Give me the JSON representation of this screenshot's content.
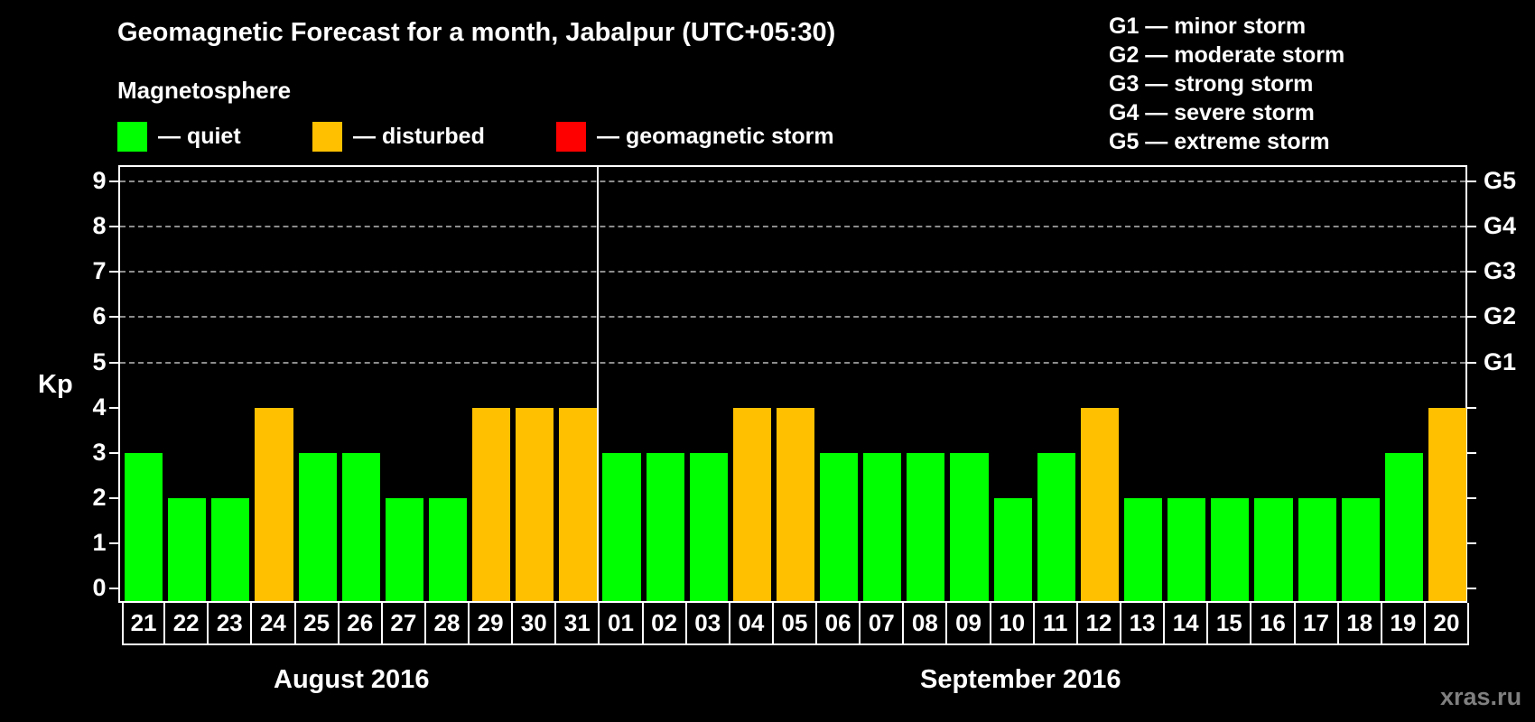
{
  "header": {
    "title": "Geomagnetic Forecast for a month, Jabalpur (UTC+05:30)",
    "magnetosphere_label": "Magnetosphere"
  },
  "legend": [
    {
      "label": "— quiet",
      "color": "#00ff00"
    },
    {
      "label": "— disturbed",
      "color": "#ffc000"
    },
    {
      "label": "— geomagnetic storm",
      "color": "#ff0000"
    }
  ],
  "storm_scale": [
    "G1 — minor storm",
    "G2 — moderate storm",
    "G3 — strong storm",
    "G4 — severe storm",
    "G5 — extreme storm"
  ],
  "axes": {
    "y_label": "Kp",
    "y_ticks": [
      "0",
      "1",
      "2",
      "3",
      "4",
      "5",
      "6",
      "7",
      "8",
      "9"
    ],
    "g_ticks": [
      {
        "kp": 5,
        "label": "G1"
      },
      {
        "kp": 6,
        "label": "G2"
      },
      {
        "kp": 7,
        "label": "G3"
      },
      {
        "kp": 8,
        "label": "G4"
      },
      {
        "kp": 9,
        "label": "G5"
      }
    ]
  },
  "months": [
    "August 2016",
    "September 2016"
  ],
  "watermark": "xras.ru",
  "colors": {
    "quiet": "#00ff00",
    "disturbed": "#ffc000",
    "storm": "#ff0000",
    "grid": "#8c8c8c"
  },
  "chart_data": {
    "type": "bar",
    "title": "Geomagnetic Forecast for a month, Jabalpur (UTC+05:30)",
    "xlabel": "",
    "ylabel": "Kp",
    "ylim": [
      0,
      9
    ],
    "grid": true,
    "legend_position": "top-left",
    "secondary_y_labels": {
      "5": "G1",
      "6": "G2",
      "7": "G3",
      "8": "G4",
      "9": "G5"
    },
    "month_labels": [
      "August 2016",
      "September 2016"
    ],
    "categories": [
      "21",
      "22",
      "23",
      "24",
      "25",
      "26",
      "27",
      "28",
      "29",
      "30",
      "31",
      "01",
      "02",
      "03",
      "04",
      "05",
      "06",
      "07",
      "08",
      "09",
      "10",
      "11",
      "12",
      "13",
      "14",
      "15",
      "16",
      "17",
      "18",
      "19",
      "20"
    ],
    "values": [
      3,
      2,
      2,
      4,
      3,
      3,
      2,
      2,
      4,
      4,
      4,
      3,
      3,
      3,
      4,
      4,
      3,
      3,
      3,
      3,
      2,
      3,
      4,
      2,
      2,
      2,
      2,
      2,
      2,
      3,
      4
    ],
    "status": [
      "quiet",
      "quiet",
      "quiet",
      "disturbed",
      "quiet",
      "quiet",
      "quiet",
      "quiet",
      "disturbed",
      "disturbed",
      "disturbed",
      "quiet",
      "quiet",
      "quiet",
      "disturbed",
      "disturbed",
      "quiet",
      "quiet",
      "quiet",
      "quiet",
      "quiet",
      "quiet",
      "disturbed",
      "quiet",
      "quiet",
      "quiet",
      "quiet",
      "quiet",
      "quiet",
      "quiet",
      "disturbed"
    ]
  }
}
